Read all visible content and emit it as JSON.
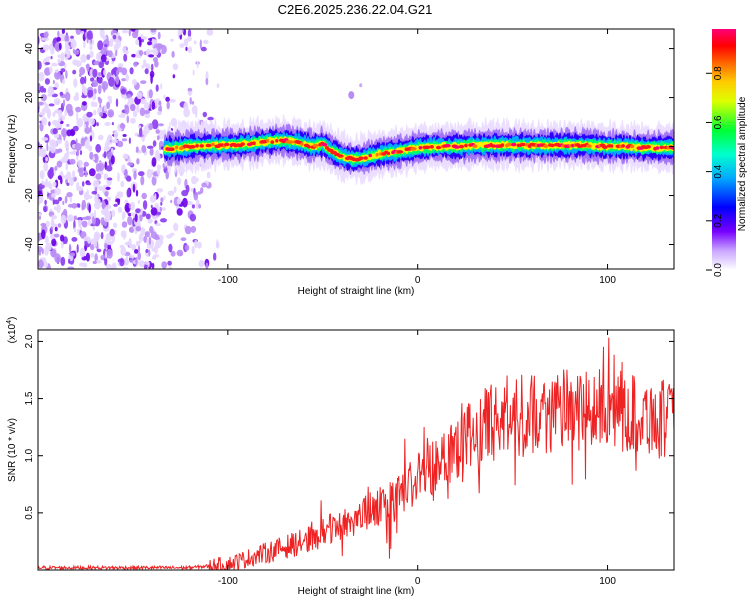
{
  "title": "C2E6.2025.236.22.04.G21",
  "chart_data": [
    {
      "type": "heatmap",
      "xlabel": "Height of straight line (km)",
      "ylabel": "Frequency (Hz)",
      "xlim": [
        -200,
        135
      ],
      "ylim": [
        -50,
        48
      ],
      "xticks": [
        "-100",
        "0",
        "100"
      ],
      "yticks": [
        "40",
        "20",
        "0",
        "-20",
        "-40"
      ],
      "colorbar": {
        "label": "Normalized spectral amplitude",
        "range": [
          0,
          0.98
        ],
        "ticks": [
          "0.0",
          "0.2",
          "0.4",
          "0.6",
          "0.8"
        ],
        "colors": [
          "#ffffff",
          "#7700ff",
          "#0000ff",
          "#00c8ff",
          "#00ff66",
          "#ffff00",
          "#ff8800",
          "#ff0000",
          "#ff0077"
        ]
      },
      "noise_region_x": [
        -200,
        -105
      ],
      "ridge": {
        "x": [
          -133,
          -120,
          -110,
          -100,
          -90,
          -80,
          -70,
          -62,
          -56,
          -50,
          -45,
          -40,
          -35,
          -30,
          -25,
          -20,
          -10,
          0,
          10,
          20,
          30,
          40,
          50,
          60,
          70,
          80,
          90,
          100,
          110,
          120,
          135
        ],
        "frequency_hz": [
          -1,
          0,
          0.5,
          0.5,
          1,
          2,
          2.5,
          1.5,
          0,
          1,
          -2,
          -4,
          -5,
          -5,
          -4,
          -3,
          -2,
          -0.5,
          0,
          0,
          0.5,
          0.5,
          0.5,
          0.5,
          0.5,
          0.5,
          0.5,
          0,
          0,
          -0.5,
          -0.5
        ]
      }
    },
    {
      "type": "line",
      "xlabel": "Height of straight line (km)",
      "ylabel": "SNR (10 * v/v)",
      "yscale_label": "(x10",
      "yscale_exponent": "4",
      "y_multiplier": 10000,
      "xlim": [
        -200,
        135
      ],
      "ylim": [
        0,
        2.1
      ],
      "xticks": [
        "-100",
        "0",
        "100"
      ],
      "yticks": [
        "0.5",
        "1.0",
        "1.5",
        "2.0"
      ],
      "series": [
        {
          "color": "#ee2222",
          "trend_x": [
            -200,
            -120,
            -100,
            -80,
            -60,
            -40,
            -20,
            -10,
            0,
            10,
            20,
            40,
            60,
            80,
            100,
            120,
            135
          ],
          "trend_y": [
            0.02,
            0.02,
            0.05,
            0.15,
            0.25,
            0.4,
            0.55,
            0.65,
            0.8,
            0.95,
            1.1,
            1.3,
            1.35,
            1.4,
            1.4,
            1.35,
            1.3
          ]
        }
      ]
    }
  ]
}
